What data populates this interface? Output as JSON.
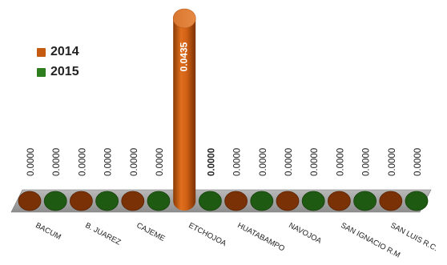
{
  "chart_data": {
    "type": "bar",
    "categories": [
      "BACUM",
      "B. JUAREZ",
      "CAJEME",
      "ETCHOJOA",
      "HUATABAMPO",
      "NAVOJOA",
      "SAN IGNACIO R.M",
      "SAN LUIS R.C."
    ],
    "series": [
      {
        "name": "2014",
        "color": "#c55a11",
        "values": [
          0.0,
          0.0,
          0.0,
          0.0435,
          0.0,
          0.0,
          0.0,
          0.0
        ]
      },
      {
        "name": "2015",
        "color": "#2e7d1f",
        "values": [
          0.0,
          0.0,
          0.0,
          0.0,
          0.0,
          0.0,
          0.0,
          0.0
        ]
      }
    ],
    "data_labels_2014": [
      "0.0000",
      "0.0000",
      "0.0000",
      "0.0435",
      "0.0000",
      "0.0000",
      "0.0000",
      "0.0000"
    ],
    "data_labels_2015": [
      "0.0000",
      "0.0000",
      "0.0000",
      "0.0000",
      "0.0000",
      "0.0000",
      "0.0000",
      "0.0000"
    ],
    "legend_position": "left",
    "grid": false,
    "ylim": [
      0,
      0.0435
    ],
    "style": "3d-cylinder"
  }
}
